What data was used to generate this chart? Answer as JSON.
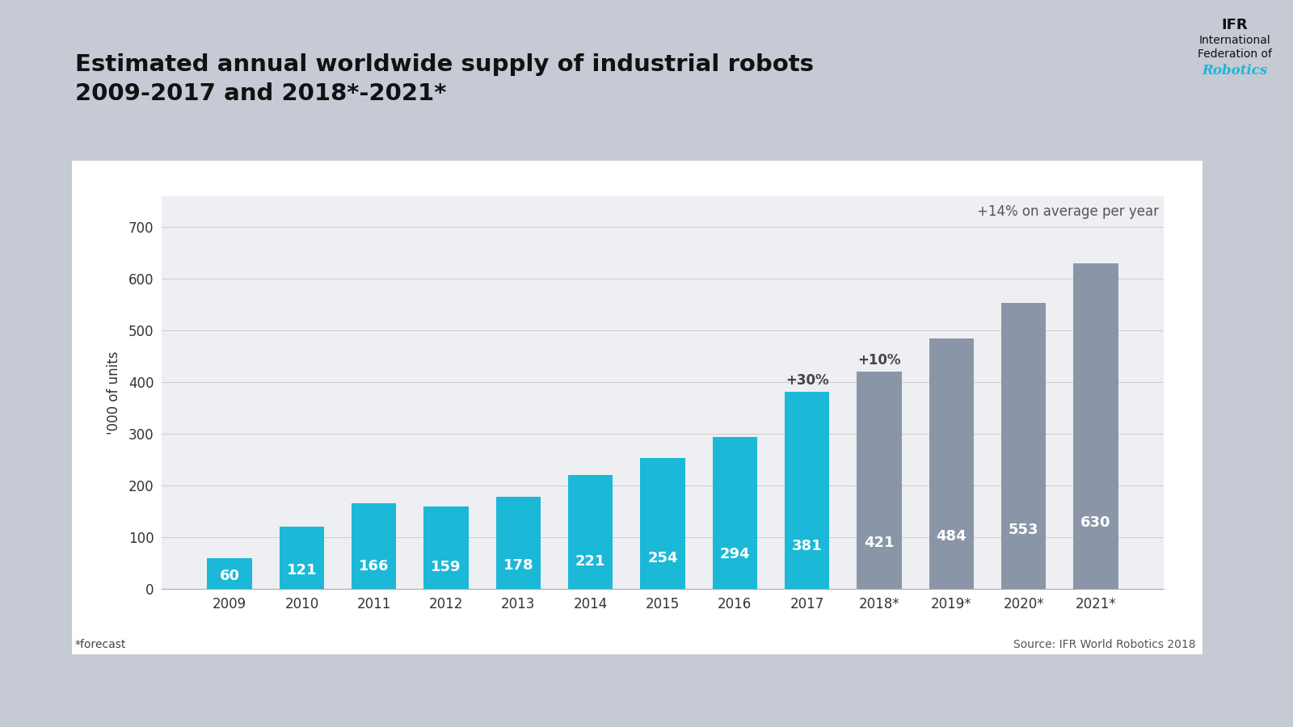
{
  "categories": [
    "2009",
    "2010",
    "2011",
    "2012",
    "2013",
    "2014",
    "2015",
    "2016",
    "2017",
    "2018*",
    "2019*",
    "2020*",
    "2021*"
  ],
  "values": [
    60,
    121,
    166,
    159,
    178,
    221,
    254,
    294,
    381,
    421,
    484,
    553,
    630
  ],
  "bar_color_blue": "#1bb8d8",
  "bar_color_gray": "#8a95a8",
  "blue_count": 9,
  "title_line1": "Estimated annual worldwide supply of industrial robots",
  "title_line2": "2009-2017 and 2018*-2021*",
  "ylabel": "'000 of units",
  "yticks": [
    0,
    100,
    200,
    300,
    400,
    500,
    600,
    700
  ],
  "ylim": [
    0,
    760
  ],
  "annotation_2017": "+30%",
  "annotation_2018": "+10%",
  "annotation_avg": "+14% on average per year",
  "footnote": "*forecast",
  "source": "Source: IFR World Robotics 2018",
  "bg_outer": "#c5cad4",
  "bg_panel": "#ffffff",
  "bg_chart": "#eeeff2",
  "title_fontsize": 21,
  "bar_label_fontsize": 13,
  "axis_label_fontsize": 12,
  "tick_fontsize": 12,
  "annot_fontsize": 12
}
